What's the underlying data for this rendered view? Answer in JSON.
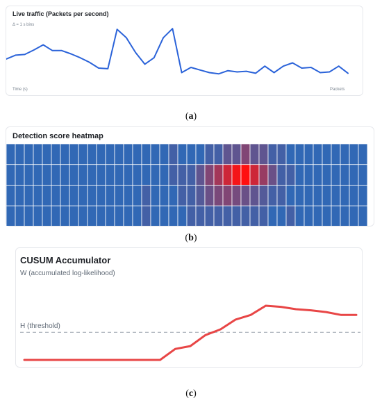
{
  "panels": [
    {
      "caption_open": "(",
      "caption_letter": "a",
      "caption_close": ")"
    },
    {
      "caption_open": "(",
      "caption_letter": "b",
      "caption_close": ")"
    },
    {
      "caption_open": "(",
      "caption_letter": "c",
      "caption_close": ")"
    }
  ],
  "colors": {
    "traffic_line": "#2b63d9",
    "cusum_line": "#e84646",
    "threshold_line": "#9aa3ad",
    "heat_low": "#1a72c7",
    "heat_high": "#ff1010"
  },
  "chart_data": [
    {
      "type": "line",
      "title": "Live traffic (Packets per second)",
      "subtitle": "Δ = 1 s bins",
      "xlabel": "Time (s)",
      "ylabel": "Packets",
      "x": [
        0,
        1,
        2,
        3,
        4,
        5,
        6,
        7,
        8,
        9,
        10,
        11,
        12,
        13,
        14,
        15,
        16,
        17,
        18,
        19,
        20,
        21,
        22,
        23,
        24,
        25,
        26,
        27,
        28,
        29,
        30,
        31,
        32,
        33,
        34,
        35,
        36,
        37
      ],
      "values": [
        0.42,
        0.48,
        0.49,
        0.56,
        0.64,
        0.55,
        0.55,
        0.5,
        0.44,
        0.37,
        0.28,
        0.27,
        0.88,
        0.75,
        0.52,
        0.34,
        0.44,
        0.75,
        0.89,
        0.21,
        0.29,
        0.25,
        0.21,
        0.19,
        0.24,
        0.22,
        0.23,
        0.2,
        0.31,
        0.21,
        0.31,
        0.36,
        0.28,
        0.29,
        0.21,
        0.22,
        0.31,
        0.2
      ],
      "ylim": [
        0,
        1
      ],
      "grid": false
    },
    {
      "type": "heatmap",
      "title": "Detection score heatmap",
      "rows": 4,
      "cols": 40,
      "values": [
        [
          0.1,
          0.1,
          0.1,
          0.1,
          0.1,
          0.1,
          0.1,
          0.1,
          0.1,
          0.1,
          0.1,
          0.1,
          0.1,
          0.1,
          0.1,
          0.1,
          0.1,
          0.1,
          0.18,
          0.1,
          0.1,
          0.1,
          0.18,
          0.18,
          0.3,
          0.3,
          0.45,
          0.3,
          0.3,
          0.18,
          0.18,
          0.1,
          0.1,
          0.1,
          0.1,
          0.1,
          0.1,
          0.1,
          0.1,
          0.1
        ],
        [
          0.1,
          0.1,
          0.1,
          0.1,
          0.1,
          0.1,
          0.1,
          0.1,
          0.1,
          0.1,
          0.1,
          0.1,
          0.1,
          0.1,
          0.1,
          0.1,
          0.1,
          0.1,
          0.18,
          0.18,
          0.18,
          0.3,
          0.45,
          0.6,
          0.78,
          0.95,
          1.0,
          0.78,
          0.55,
          0.35,
          0.18,
          0.18,
          0.1,
          0.1,
          0.1,
          0.1,
          0.1,
          0.1,
          0.1,
          0.1
        ],
        [
          0.1,
          0.1,
          0.1,
          0.1,
          0.1,
          0.1,
          0.1,
          0.1,
          0.1,
          0.1,
          0.1,
          0.1,
          0.1,
          0.1,
          0.1,
          0.18,
          0.1,
          0.1,
          0.1,
          0.18,
          0.18,
          0.25,
          0.35,
          0.42,
          0.45,
          0.4,
          0.35,
          0.3,
          0.25,
          0.18,
          0.18,
          0.1,
          0.1,
          0.1,
          0.1,
          0.1,
          0.1,
          0.1,
          0.1,
          0.1
        ],
        [
          0.1,
          0.1,
          0.1,
          0.1,
          0.1,
          0.1,
          0.1,
          0.1,
          0.1,
          0.1,
          0.1,
          0.1,
          0.1,
          0.1,
          0.1,
          0.18,
          0.1,
          0.1,
          0.1,
          0.1,
          0.18,
          0.18,
          0.18,
          0.18,
          0.18,
          0.18,
          0.18,
          0.18,
          0.18,
          0.1,
          0.1,
          0.18,
          0.1,
          0.1,
          0.1,
          0.1,
          0.1,
          0.1,
          0.1,
          0.1
        ]
      ]
    },
    {
      "type": "line",
      "title": "CUSUM Accumulator",
      "subtitle": "W (accumulated log-likelihood)",
      "threshold_label": "H (threshold)",
      "threshold": 0.48,
      "x": [
        0,
        1,
        2,
        3,
        4,
        5,
        6,
        7,
        8,
        9,
        10,
        11,
        12,
        13,
        14,
        15,
        16,
        17,
        18,
        19,
        20,
        21,
        22
      ],
      "values": [
        0.0,
        0.0,
        0.0,
        0.0,
        0.0,
        0.0,
        0.0,
        0.0,
        0.0,
        0.0,
        0.19,
        0.24,
        0.43,
        0.53,
        0.7,
        0.78,
        0.94,
        0.92,
        0.88,
        0.86,
        0.83,
        0.78,
        0.78
      ],
      "ylim": [
        0,
        1
      ],
      "grid": false
    }
  ]
}
